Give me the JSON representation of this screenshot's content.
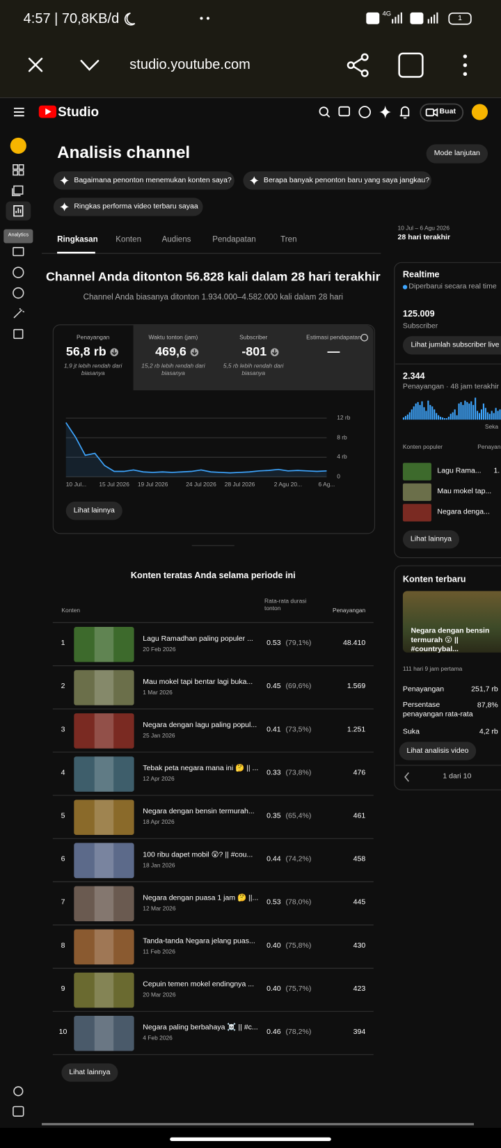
{
  "status_bar": {
    "time": "4:57 | 70,8KB/d",
    "network": "4G",
    "battery": "1"
  },
  "browser": {
    "url": "studio.youtube.com"
  },
  "header": {
    "logo": "Studio",
    "create": "Buat"
  },
  "sidebar": {
    "tooltip": "Analytics"
  },
  "page": {
    "title": "Analisis channel",
    "advanced_mode": "Mode lanjutan",
    "chips": [
      "Bagaimana penonton menemukan konten saya?",
      "Berapa banyak penonton baru yang saya jangkau?",
      "Ringkas performa video terbaru sayaa"
    ],
    "tabs": [
      "Ringkasan",
      "Konten",
      "Audiens",
      "Pendapatan",
      "Tren"
    ],
    "date_range": "10 Jul – 6 Agu 2026",
    "period": "28 hari terakhir",
    "headline": "Channel Anda ditonton 56.828 kali dalam 28 hari terakhir",
    "subheadline": "Channel Anda biasanya ditonton 1.934.000–4.582.000 kali dalam 28 hari"
  },
  "metrics": [
    {
      "label": "Penayangan",
      "value": "56,8 rb",
      "note": "1,9 jt lebih rendah dari biasanya"
    },
    {
      "label": "Waktu tonton (jam)",
      "value": "469,6",
      "note": "15,2 rb lebih rendah dari biasanya"
    },
    {
      "label": "Subscriber",
      "value": "-801",
      "note": "5,5 rb lebih rendah dari biasanya"
    },
    {
      "label": "Estimasi pendapatan",
      "value": "—"
    }
  ],
  "chart_data": {
    "type": "line",
    "categories": [
      "10 Jul...",
      null,
      null,
      null,
      null,
      "15 Jul 2026",
      null,
      null,
      null,
      "19 Jul 2026",
      null,
      null,
      null,
      null,
      "24 Jul 2026",
      null,
      null,
      null,
      "28 Jul 2026",
      null,
      null,
      null,
      null,
      "2 Agu 20...",
      null,
      null,
      null,
      "6 Ag..."
    ],
    "values": [
      11100,
      8100,
      4400,
      4800,
      2300,
      1100,
      1100,
      1400,
      1000,
      900,
      1000,
      900,
      1000,
      1100,
      1400,
      1000,
      900,
      800,
      900,
      1000,
      1200,
      1300,
      1500,
      1200,
      1300,
      1200,
      1100,
      1200
    ],
    "color": "#3ea6ff",
    "ylim": [
      0,
      12000
    ],
    "yticks": [
      0,
      {
        "value": 4000,
        "label": "4 rb"
      },
      {
        "value": 8000,
        "label": "8 rb"
      },
      {
        "value": 12000,
        "label": "12 rb"
      }
    ],
    "grid": true
  },
  "see_more": "Lihat lainnya",
  "top_content": {
    "title": "Konten teratas Anda selama periode ini",
    "columns": [
      "Konten",
      "Rata-rata durasi tonton",
      "Penayangan"
    ],
    "rows": [
      {
        "rank": "1",
        "title": "Lagu Ramadhan paling populer ...",
        "date": "20 Feb 2026",
        "avg_duration": "0.53",
        "avg_percent": "(79,1%)",
        "views": "48.410"
      },
      {
        "rank": "2",
        "title": "Mau mokel tapi bentar lagi buka...",
        "date": "1 Mar 2026",
        "avg_duration": "0.45",
        "avg_percent": "(69,6%)",
        "views": "1.569"
      },
      {
        "rank": "3",
        "title": "Negara dengan lagu paling popul...",
        "date": "25 Jan 2026",
        "avg_duration": "0.41",
        "avg_percent": "(73,5%)",
        "views": "1.251"
      },
      {
        "rank": "4",
        "title": "Tebak peta negara mana ini 🤔 || ...",
        "date": "12 Apr 2026",
        "avg_duration": "0.33",
        "avg_percent": "(73,8%)",
        "views": "476"
      },
      {
        "rank": "5",
        "title": "Negara dengan bensin termurah...",
        "date": "18 Apr 2026",
        "avg_duration": "0.35",
        "avg_percent": "(65,4%)",
        "views": "461"
      },
      {
        "rank": "6",
        "title": "100 ribu dapet mobil 😲? || #cou...",
        "date": "18 Jan 2026",
        "avg_duration": "0.44",
        "avg_percent": "(74,2%)",
        "views": "458"
      },
      {
        "rank": "7",
        "title": "Negara dengan puasa 1 jam 🤔 ||...",
        "date": "12 Mar 2026",
        "avg_duration": "0.53",
        "avg_percent": "(78,0%)",
        "views": "445"
      },
      {
        "rank": "8",
        "title": "Tanda-tanda Negara jelang puas...",
        "date": "11 Feb 2026",
        "avg_duration": "0.40",
        "avg_percent": "(75,8%)",
        "views": "430"
      },
      {
        "rank": "9",
        "title": "Cepuin temen mokel endingnya ...",
        "date": "20 Mar 2026",
        "avg_duration": "0.40",
        "avg_percent": "(75,7%)",
        "views": "423"
      },
      {
        "rank": "10",
        "title": "Negara paling berbahaya ☠️ || #c...",
        "date": "4 Feb 2026",
        "avg_duration": "0.46",
        "avg_percent": "(78,2%)",
        "views": "394"
      }
    ],
    "see_more": "Lihat lainnya"
  },
  "realtime": {
    "title": "Realtime",
    "status": "Diperbarui secara real time",
    "subscribers": "125.009",
    "subscribers_label": "Subscriber",
    "live_button": "Lihat jumlah subscriber live",
    "views": "2.344",
    "views_label": "Penayangan · 48 jam terakhir",
    "bars": [
      3,
      5,
      7,
      10,
      14,
      18,
      22,
      24,
      20,
      25,
      17,
      12,
      26,
      20,
      18,
      14,
      9,
      6,
      4,
      3,
      2,
      2,
      4,
      8,
      10,
      14,
      6,
      22,
      24,
      20,
      26,
      24,
      22,
      25,
      20,
      30,
      12,
      9,
      14,
      22,
      16,
      10,
      8,
      12,
      9,
      16,
      12,
      14
    ],
    "now_label": "Seka",
    "popular_label": "Konten populer",
    "popular_views_label": "Penayan",
    "popular": [
      {
        "title": "Lagu Rama...",
        "views": "1."
      },
      {
        "title": "Mau mokel tap..."
      },
      {
        "title": "Negara denga..."
      }
    ],
    "see_more": "Lihat lainnya"
  },
  "latest_content": {
    "title": "Konten terbaru",
    "caption": "Negara dengan bensin termurah 😮 || #countrybal...",
    "period": "111 hari 9 jam pertama",
    "stats": [
      {
        "label": "Penayangan",
        "value": "251,7 rb"
      },
      {
        "label": "Persentase penayangan rata-rata",
        "value": "87,8%"
      },
      {
        "label": "Suka",
        "value": "4,2 rb"
      }
    ],
    "button": "Lihat analisis video",
    "pager": "1 dari 10"
  }
}
